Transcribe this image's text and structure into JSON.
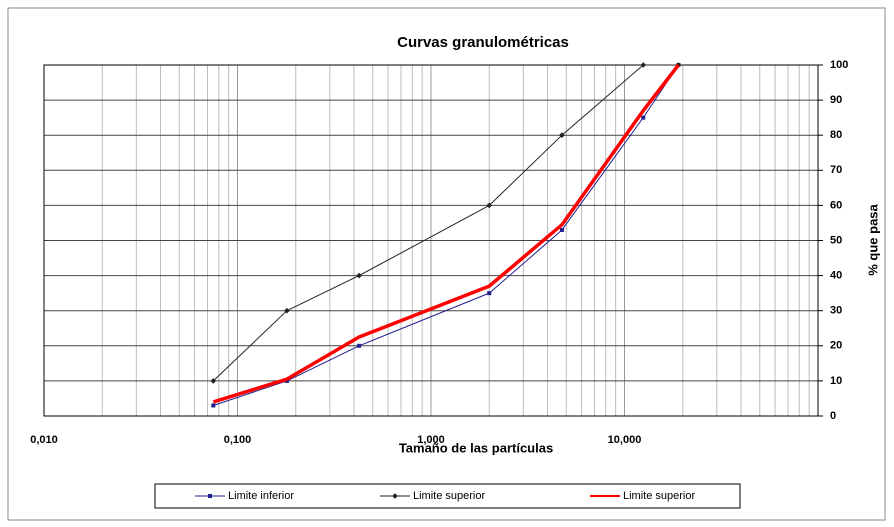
{
  "chart_data": {
    "type": "line",
    "title": "Curvas granulométricas",
    "x_label": "Tamaño de las partículas",
    "y_label": "% que pasa",
    "x": [
      0.075,
      0.18,
      0.425,
      2,
      4.75,
      12.5,
      19
    ],
    "series": [
      {
        "name": "Limite inferior",
        "color": "#1f1f8f",
        "values": [
          3,
          10,
          20,
          35,
          53,
          85,
          100
        ]
      },
      {
        "name": "Limite superior",
        "color": "#222222",
        "values": [
          10,
          30,
          40,
          60,
          80,
          100,
          100
        ]
      },
      {
        "name": "Limite superior",
        "color": "#ff0000",
        "values": [
          4,
          10.5,
          22.5,
          37,
          54.5,
          87,
          100
        ]
      }
    ],
    "xscale": "log",
    "xlim": [
      0.01,
      100
    ],
    "xticks": [
      {
        "value": 0.01,
        "label": "0,010"
      },
      {
        "value": 0.1,
        "label": "0,100"
      },
      {
        "value": 1,
        "label": "1,000"
      },
      {
        "value": 10,
        "label": "10,000"
      }
    ],
    "ylim": [
      0,
      100
    ],
    "yticks": [
      0,
      10,
      20,
      30,
      40,
      50,
      60,
      70,
      80,
      90,
      100
    ],
    "grid": true,
    "legend": "bottom"
  }
}
